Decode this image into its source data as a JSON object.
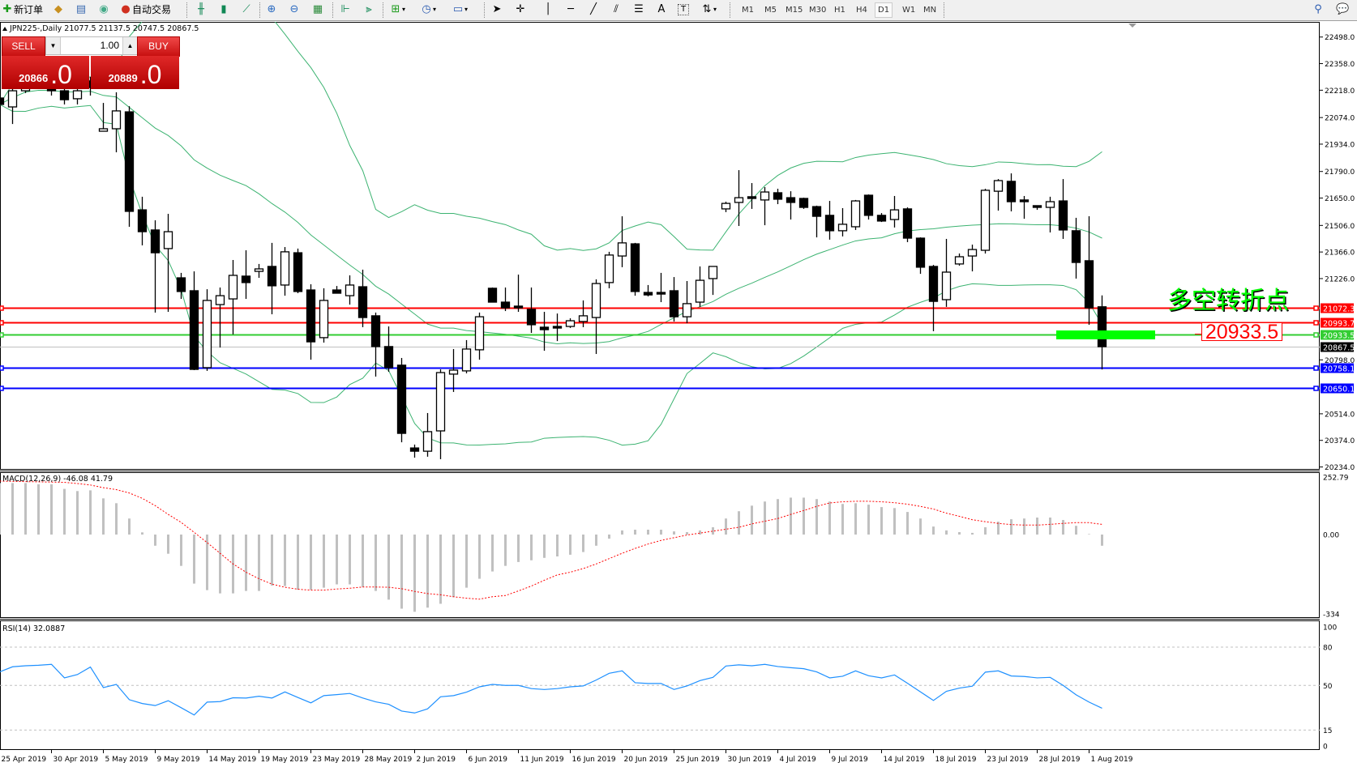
{
  "toolbar": {
    "new_order": "新订单",
    "auto_trading": "自动交易",
    "timeframes": [
      "M1",
      "M5",
      "M15",
      "M30",
      "H1",
      "H4",
      "D1",
      "W1",
      "MN"
    ],
    "active_timeframe": "D1",
    "icons": [
      "new-order-icon",
      "expert-icon",
      "navigator-icon",
      "signals-icon",
      "auto-trading-icon",
      "bar-chart-icon",
      "candlestick-icon",
      "line-chart-icon",
      "zoom-in-icon",
      "zoom-out-icon",
      "tile-windows-icon",
      "chart-shift-icon",
      "autoscroll-icon",
      "indicators-icon",
      "periods-icon",
      "templates-icon",
      "cursor-icon",
      "crosshair-icon",
      "vertical-line-icon",
      "horizontal-line-icon",
      "trendline-icon",
      "equidistant-channel-icon",
      "fibonacci-icon",
      "text-icon",
      "text-label-icon",
      "arrows-icon",
      "search-icon",
      "chat-icon"
    ]
  },
  "chart_header": "JPN225-,Daily  21077.5 21137.5 20747.5 20867.5",
  "one_click": {
    "sell_label": "SELL",
    "buy_label": "BUY",
    "volume": "1.00",
    "sell_price_main": "20866",
    "sell_price_big": ".0",
    "buy_price_main": "20889",
    "buy_price_big": ".0"
  },
  "annotation": {
    "text": "多空转折点",
    "price_box": "20933.5",
    "text_color": "#00ff00",
    "box_color": "#ff0000"
  },
  "price_axis": [
    "22498.0",
    "22358.0",
    "22218.0",
    "22074.0",
    "21934.0",
    "21790.0",
    "21650.0",
    "21506.0",
    "21366.0",
    "21226.0",
    "20798.0",
    "20514.0",
    "20374.0",
    "20234.0"
  ],
  "levels": [
    {
      "price": "21072.3",
      "color": "#ff0000",
      "kind": "resistance"
    },
    {
      "price": "20993.7",
      "color": "#ff0000",
      "kind": "resistance"
    },
    {
      "price": "20933.5",
      "color": "#32cd32",
      "kind": "pivot"
    },
    {
      "price": "20867.5",
      "color": "#000000",
      "kind": "bid"
    },
    {
      "price": "20758.1",
      "color": "#0000ff",
      "kind": "support"
    },
    {
      "price": "20650.1",
      "color": "#0000ff",
      "kind": "support"
    }
  ],
  "macd": {
    "label": "MACD(12,26,9) -46.08 41.79",
    "axis": [
      "252.79",
      "0.00",
      "-334"
    ],
    "hist_color": "#c0c0c0",
    "signal_color": "#ff0000",
    "histogram": [
      212,
      212,
      212,
      207,
      207,
      188,
      179,
      182,
      149,
      129,
      66,
      9,
      -46,
      -79,
      -129,
      -202,
      -229,
      -242,
      -242,
      -232,
      -232,
      -210,
      -212,
      -227,
      -227,
      -219,
      -205,
      -205,
      -216,
      -232,
      -268,
      -305,
      -318,
      -301,
      -285,
      -258,
      -219,
      -182,
      -152,
      -129,
      -113,
      -106,
      -96,
      -90,
      -83,
      -72,
      -46,
      -17,
      17,
      20,
      20,
      20,
      13,
      10,
      17,
      30,
      66,
      96,
      119,
      136,
      146,
      152,
      152,
      146,
      136,
      126,
      129,
      123,
      113,
      109,
      93,
      66,
      33,
      17,
      10,
      7,
      30,
      53,
      63,
      66,
      70,
      70,
      60,
      36,
      2,
      -46.08
    ],
    "signal": [
      220,
      219,
      218,
      217,
      216,
      215,
      210,
      204,
      193,
      185,
      171,
      149,
      119,
      83,
      50,
      9,
      -33,
      -77,
      -121,
      -155,
      -182,
      -204,
      -217,
      -225,
      -229,
      -229,
      -224,
      -221,
      -216,
      -216,
      -217,
      -223,
      -234,
      -243,
      -248,
      -256,
      -262,
      -266,
      -256,
      -251,
      -232,
      -212,
      -188,
      -166,
      -155,
      -140,
      -121,
      -99,
      -77,
      -57,
      -39,
      -24,
      -13,
      -2,
      6,
      14,
      22,
      30,
      44,
      55,
      66,
      83,
      99,
      116,
      130,
      135,
      137,
      137,
      135,
      131,
      125,
      116,
      105,
      88,
      75,
      61,
      53,
      46,
      41,
      39,
      39,
      42,
      46,
      49,
      49,
      41.79
    ]
  },
  "rsi": {
    "label": "RSI(14) 32.0887",
    "axis": [
      "100",
      "80",
      "50",
      "15",
      "0"
    ],
    "color": "#1e90ff",
    "values": [
      60.6,
      64.6,
      65.4,
      65.8,
      66.5,
      55.9,
      58.5,
      64.4,
      48.3,
      50.8,
      38.8,
      35.8,
      34.2,
      38.0,
      32.5,
      26.8,
      36.9,
      37.3,
      40.3,
      40.1,
      41.5,
      40.1,
      44.9,
      40.5,
      36.3,
      42.0,
      42.8,
      43.7,
      40.1,
      37.1,
      35.2,
      29.9,
      28.4,
      31.6,
      41.1,
      42.0,
      44.7,
      48.9,
      50.8,
      50.0,
      50.0,
      47.5,
      46.8,
      47.5,
      48.9,
      49.6,
      54.2,
      59.5,
      61.4,
      52.1,
      51.5,
      51.5,
      46.8,
      49.6,
      53.8,
      56.3,
      65.2,
      66.1,
      65.4,
      66.5,
      64.8,
      63.9,
      63.1,
      60.6,
      55.9,
      57.2,
      61.4,
      57.6,
      55.9,
      58.2,
      51.7,
      44.9,
      38.2,
      45.4,
      47.9,
      49.4,
      60.4,
      61.4,
      57.4,
      57.0,
      55.9,
      56.3,
      50.0,
      42.6,
      36.9,
      32.0887
    ]
  },
  "chart_data": {
    "type": "candlestick",
    "symbol": "JPN225-",
    "timeframe": "Daily",
    "ylim": [
      20234.0,
      22498.0
    ],
    "bollinger_color": "#3cb371",
    "date_labels": [
      "25 Apr 2019",
      "30 Apr 2019",
      "5 May 2019",
      "9 May 2019",
      "14 May 2019",
      "19 May 2019",
      "23 May 2019",
      "28 May 2019",
      "2 Jun 2019",
      "6 Jun 2019",
      "11 Jun 2019",
      "16 Jun 2019",
      "20 Jun 2019",
      "25 Jun 2019",
      "30 Jun 2019",
      "4 Jul 2019",
      "9 Jul 2019",
      "14 Jul 2019",
      "18 Jul 2019",
      "23 Jul 2019",
      "28 Jul 2019",
      "1 Aug 2019"
    ],
    "bars": [
      {
        "o": 22177,
        "h": 22190,
        "l": 22126,
        "c": 22143
      },
      {
        "o": 22130,
        "h": 22232,
        "l": 22040,
        "c": 22215
      },
      {
        "o": 22215,
        "h": 22288,
        "l": 22203,
        "c": 22267
      },
      {
        "o": 22267,
        "h": 22288,
        "l": 22224,
        "c": 22245
      },
      {
        "o": 22245,
        "h": 22267,
        "l": 22190,
        "c": 22215
      },
      {
        "o": 22215,
        "h": 22241,
        "l": 22143,
        "c": 22168
      },
      {
        "o": 22173,
        "h": 22245,
        "l": 22143,
        "c": 22215
      },
      {
        "o": 22267,
        "h": 22288,
        "l": 22190,
        "c": 22232
      },
      {
        "o": 22002,
        "h": 22151,
        "l": 22002,
        "c": 22015
      },
      {
        "o": 22015,
        "h": 22207,
        "l": 21891,
        "c": 22109
      },
      {
        "o": 22104,
        "h": 22134,
        "l": 21499,
        "c": 21580
      },
      {
        "o": 21588,
        "h": 21657,
        "l": 21401,
        "c": 21473
      },
      {
        "o": 21482,
        "h": 21533,
        "l": 21047,
        "c": 21362
      },
      {
        "o": 21384,
        "h": 21567,
        "l": 21051,
        "c": 21473
      },
      {
        "o": 21230,
        "h": 21256,
        "l": 21119,
        "c": 21158
      },
      {
        "o": 21162,
        "h": 21264,
        "l": 20744,
        "c": 20748
      },
      {
        "o": 20757,
        "h": 21170,
        "l": 20740,
        "c": 21111
      },
      {
        "o": 21089,
        "h": 21179,
        "l": 20863,
        "c": 21136
      },
      {
        "o": 21119,
        "h": 21324,
        "l": 20932,
        "c": 21243
      },
      {
        "o": 21239,
        "h": 21375,
        "l": 21119,
        "c": 21205
      },
      {
        "o": 21264,
        "h": 21303,
        "l": 21230,
        "c": 21277
      },
      {
        "o": 21290,
        "h": 21414,
        "l": 21038,
        "c": 21188
      },
      {
        "o": 21192,
        "h": 21392,
        "l": 21136,
        "c": 21367
      },
      {
        "o": 21362,
        "h": 21384,
        "l": 21149,
        "c": 21158
      },
      {
        "o": 21166,
        "h": 21196,
        "l": 20799,
        "c": 20893
      },
      {
        "o": 20915,
        "h": 21175,
        "l": 20889,
        "c": 21111
      },
      {
        "o": 21166,
        "h": 21187,
        "l": 21149,
        "c": 21149
      },
      {
        "o": 21136,
        "h": 21243,
        "l": 21089,
        "c": 21192
      },
      {
        "o": 21183,
        "h": 21273,
        "l": 20970,
        "c": 21021
      },
      {
        "o": 21030,
        "h": 21047,
        "l": 20710,
        "c": 20868
      },
      {
        "o": 20868,
        "h": 20974,
        "l": 20735,
        "c": 20757
      },
      {
        "o": 20770,
        "h": 20808,
        "l": 20364,
        "c": 20411
      },
      {
        "o": 20334,
        "h": 20352,
        "l": 20283,
        "c": 20317
      },
      {
        "o": 20317,
        "h": 20518,
        "l": 20288,
        "c": 20420
      },
      {
        "o": 20424,
        "h": 20748,
        "l": 20275,
        "c": 20731
      },
      {
        "o": 20723,
        "h": 20855,
        "l": 20629,
        "c": 20744
      },
      {
        "o": 20740,
        "h": 20902,
        "l": 20727,
        "c": 20855
      },
      {
        "o": 20851,
        "h": 21047,
        "l": 20799,
        "c": 21025
      },
      {
        "o": 21175,
        "h": 21179,
        "l": 21102,
        "c": 21102
      },
      {
        "o": 21102,
        "h": 21179,
        "l": 21055,
        "c": 21072
      },
      {
        "o": 21081,
        "h": 21247,
        "l": 21051,
        "c": 21072
      },
      {
        "o": 21064,
        "h": 21179,
        "l": 20940,
        "c": 20983
      },
      {
        "o": 20970,
        "h": 21051,
        "l": 20846,
        "c": 20957
      },
      {
        "o": 20974,
        "h": 21042,
        "l": 20897,
        "c": 20970
      },
      {
        "o": 20974,
        "h": 21017,
        "l": 20966,
        "c": 21004
      },
      {
        "o": 21000,
        "h": 21111,
        "l": 20970,
        "c": 21030
      },
      {
        "o": 21021,
        "h": 21222,
        "l": 20829,
        "c": 21200
      },
      {
        "o": 21205,
        "h": 21367,
        "l": 21175,
        "c": 21350
      },
      {
        "o": 21345,
        "h": 21554,
        "l": 21286,
        "c": 21414
      },
      {
        "o": 21409,
        "h": 21414,
        "l": 21136,
        "c": 21158
      },
      {
        "o": 21153,
        "h": 21192,
        "l": 21132,
        "c": 21140
      },
      {
        "o": 21153,
        "h": 21256,
        "l": 21102,
        "c": 21145
      },
      {
        "o": 21162,
        "h": 21234,
        "l": 21000,
        "c": 21025
      },
      {
        "o": 21025,
        "h": 21213,
        "l": 20991,
        "c": 21094
      },
      {
        "o": 21102,
        "h": 21290,
        "l": 21077,
        "c": 21217
      },
      {
        "o": 21226,
        "h": 21290,
        "l": 21140,
        "c": 21290
      },
      {
        "o": 21593,
        "h": 21631,
        "l": 21576,
        "c": 21622
      },
      {
        "o": 21627,
        "h": 21797,
        "l": 21503,
        "c": 21652
      },
      {
        "o": 21657,
        "h": 21729,
        "l": 21593,
        "c": 21648
      },
      {
        "o": 21640,
        "h": 21708,
        "l": 21507,
        "c": 21682
      },
      {
        "o": 21678,
        "h": 21699,
        "l": 21618,
        "c": 21644
      },
      {
        "o": 21652,
        "h": 21686,
        "l": 21537,
        "c": 21627
      },
      {
        "o": 21648,
        "h": 21652,
        "l": 21593,
        "c": 21601
      },
      {
        "o": 21605,
        "h": 21610,
        "l": 21443,
        "c": 21554
      },
      {
        "o": 21559,
        "h": 21635,
        "l": 21431,
        "c": 21478
      },
      {
        "o": 21478,
        "h": 21597,
        "l": 21448,
        "c": 21512
      },
      {
        "o": 21499,
        "h": 21640,
        "l": 21482,
        "c": 21635
      },
      {
        "o": 21665,
        "h": 21669,
        "l": 21537,
        "c": 21559
      },
      {
        "o": 21559,
        "h": 21571,
        "l": 21524,
        "c": 21529
      },
      {
        "o": 21537,
        "h": 21661,
        "l": 21495,
        "c": 21588
      },
      {
        "o": 21593,
        "h": 21601,
        "l": 21418,
        "c": 21439
      },
      {
        "o": 21439,
        "h": 21443,
        "l": 21251,
        "c": 21286
      },
      {
        "o": 21290,
        "h": 21298,
        "l": 20949,
        "c": 21106
      },
      {
        "o": 21115,
        "h": 21435,
        "l": 21077,
        "c": 21260
      },
      {
        "o": 21303,
        "h": 21358,
        "l": 21294,
        "c": 21341
      },
      {
        "o": 21345,
        "h": 21405,
        "l": 21264,
        "c": 21379
      },
      {
        "o": 21375,
        "h": 21699,
        "l": 21358,
        "c": 21691
      },
      {
        "o": 21686,
        "h": 21750,
        "l": 21584,
        "c": 21742
      },
      {
        "o": 21738,
        "h": 21780,
        "l": 21580,
        "c": 21631
      },
      {
        "o": 21640,
        "h": 21661,
        "l": 21541,
        "c": 21631
      },
      {
        "o": 21610,
        "h": 21610,
        "l": 21588,
        "c": 21601
      },
      {
        "o": 21601,
        "h": 21657,
        "l": 21469,
        "c": 21631
      },
      {
        "o": 21635,
        "h": 21750,
        "l": 21435,
        "c": 21482
      },
      {
        "o": 21478,
        "h": 21546,
        "l": 21226,
        "c": 21311
      },
      {
        "o": 21320,
        "h": 21554,
        "l": 20983,
        "c": 21072
      },
      {
        "o": 21077.5,
        "h": 21137.5,
        "l": 20747.5,
        "c": 20867.5
      }
    ]
  }
}
